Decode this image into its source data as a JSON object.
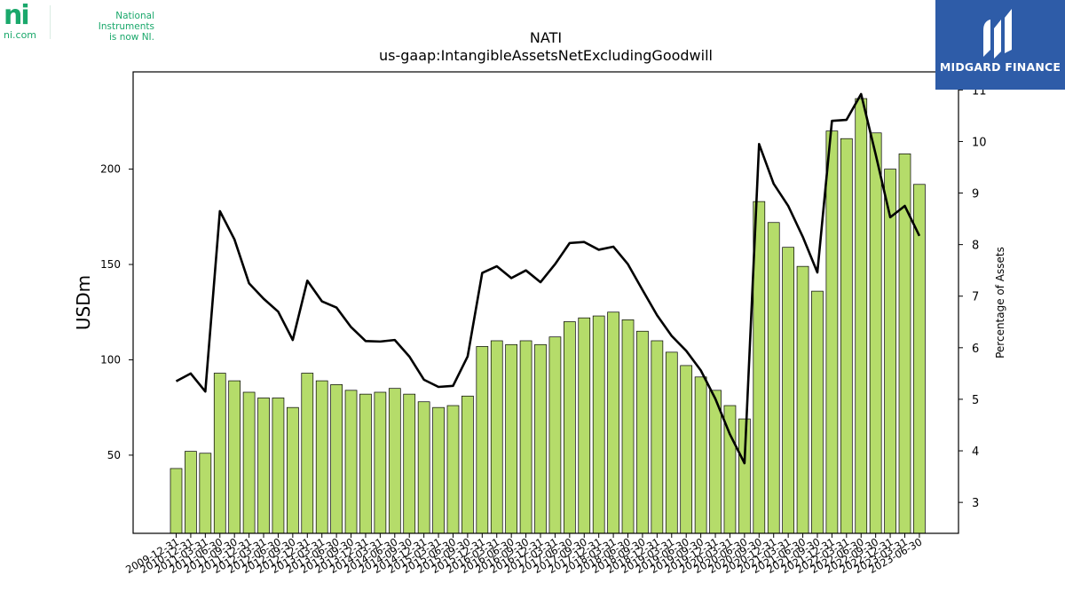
{
  "branding": {
    "ni_mark": "ni",
    "ni_url": "ni.com",
    "ni_tagline_line1": "National Instruments",
    "ni_tagline_line2": "is now NI.",
    "badge_text": "MIDGARD FINANCE",
    "badge_color": "#2e5ca8",
    "ni_color": "#1aa86b"
  },
  "chart_data": {
    "type": "bar",
    "title": "NATI",
    "subtitle": "us-gaap:IntangibleAssetsNetExcludingGoodwill",
    "ylabel": "USDm",
    "y2label": "Percentage of Assets",
    "ylim": [
      9,
      251
    ],
    "y2lim": [
      2.4,
      11.35
    ],
    "yticks": [
      50,
      100,
      150,
      200
    ],
    "y2ticks": [
      3,
      4,
      5,
      6,
      7,
      8,
      9,
      10,
      11
    ],
    "bar_color": "#b5dc6a",
    "line_color": "#000000",
    "categories": [
      "2009-12-31",
      "2010-12-31",
      "2011-03-31",
      "2011-06-30",
      "2011-09-30",
      "2011-12-31",
      "2012-03-31",
      "2012-06-30",
      "2012-09-30",
      "2012-12-31",
      "2013-03-31",
      "2013-06-30",
      "2013-09-30",
      "2013-12-31",
      "2014-03-31",
      "2014-06-30",
      "2014-09-30",
      "2014-12-31",
      "2015-03-31",
      "2015-06-30",
      "2015-09-30",
      "2015-12-31",
      "2016-03-31",
      "2016-06-30",
      "2016-09-30",
      "2016-12-31",
      "2017-03-31",
      "2017-06-30",
      "2017-09-30",
      "2017-12-31",
      "2018-03-31",
      "2018-06-30",
      "2018-09-30",
      "2018-12-31",
      "2019-03-31",
      "2019-06-30",
      "2019-09-30",
      "2019-12-31",
      "2020-03-31",
      "2020-06-30",
      "2020-09-30",
      "2020-12-31",
      "2021-03-31",
      "2021-06-30",
      "2021-09-30",
      "2021-12-31",
      "2022-03-31",
      "2022-06-30",
      "2022-09-30",
      "2022-12-31",
      "2023-03-31",
      "2023-06-30"
    ],
    "series": [
      {
        "name": "",
        "kind": "bar",
        "axis": "left",
        "values": [
          43,
          52,
          51,
          93,
          89,
          83,
          80,
          80,
          75,
          93,
          89,
          87,
          84,
          82,
          83,
          85,
          82,
          78,
          75,
          76,
          81,
          107,
          110,
          108,
          110,
          108,
          112,
          120,
          122,
          123,
          125,
          121,
          115,
          110,
          104,
          97,
          91,
          84,
          76,
          69,
          183,
          172,
          159,
          149,
          136,
          220,
          216,
          237,
          219,
          200,
          208,
          192
        ]
      },
      {
        "name": "",
        "kind": "line",
        "axis": "right",
        "values": [
          5.35,
          5.5,
          5.15,
          8.65,
          8.1,
          7.25,
          6.95,
          6.7,
          6.15,
          7.3,
          6.9,
          6.78,
          6.4,
          6.13,
          6.12,
          6.15,
          5.83,
          5.38,
          5.24,
          5.26,
          5.83,
          7.45,
          7.58,
          7.35,
          7.5,
          7.27,
          7.62,
          8.03,
          8.05,
          7.9,
          7.96,
          7.62,
          7.12,
          6.63,
          6.23,
          5.94,
          5.56,
          5.01,
          4.32,
          3.76,
          9.95,
          9.18,
          8.75,
          8.15,
          7.46,
          10.4,
          10.42,
          10.92,
          9.75,
          8.53,
          8.75,
          8.17
        ]
      }
    ]
  }
}
